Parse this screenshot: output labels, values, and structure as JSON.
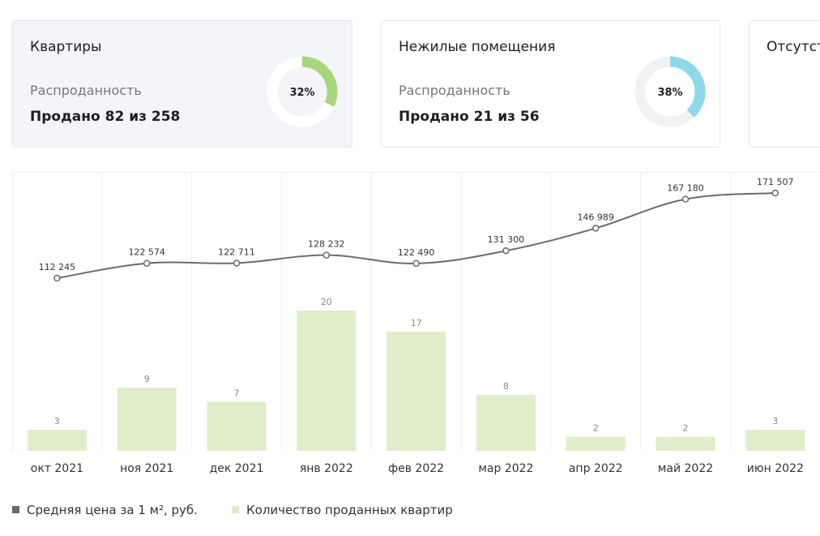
{
  "cards": [
    {
      "title": "Квартиры",
      "subtitle": "Распроданность",
      "sold_text": "Продано 82 из 258",
      "percent_label": "32%",
      "percent": 0.32,
      "color": "#a9d67b"
    },
    {
      "title": "Нежилые помещения",
      "subtitle": "Распроданность",
      "sold_text": "Продано 21 из 56",
      "percent_label": "38%",
      "percent": 0.38,
      "color": "#8dd9ea"
    },
    {
      "title": "Отсутст"
    }
  ],
  "legend": {
    "line_label": "Средняя цена за 1 м², руб.",
    "bar_label": "Количество проданных квартир",
    "line_color": "#6b6878",
    "bar_color": "#dfeec9"
  },
  "chart_data": {
    "type": "bar",
    "categories": [
      "окт 2021",
      "ноя 2021",
      "дек 2021",
      "янв 2022",
      "фев 2022",
      "мар 2022",
      "апр 2022",
      "май 2022",
      "июн 2022"
    ],
    "series": [
      {
        "name": "Количество проданных квартир",
        "type": "bar",
        "values": [
          3,
          9,
          7,
          20,
          17,
          8,
          2,
          2,
          3
        ],
        "labels": [
          "3",
          "9",
          "7",
          "20",
          "17",
          "8",
          "2",
          "2",
          "3"
        ]
      },
      {
        "name": "Средняя цена за 1 м², руб.",
        "type": "line",
        "values": [
          112245,
          122574,
          122711,
          128232,
          122490,
          131300,
          146989,
          167180,
          171507
        ],
        "labels": [
          "112 245",
          "122 574",
          "122 711",
          "128 232",
          "122 490",
          "131 300",
          "146 989",
          "167 180",
          "171 507"
        ]
      }
    ],
    "bar_ylim": [
      0,
      20
    ],
    "line_ylim": [
      112245,
      171507
    ]
  }
}
